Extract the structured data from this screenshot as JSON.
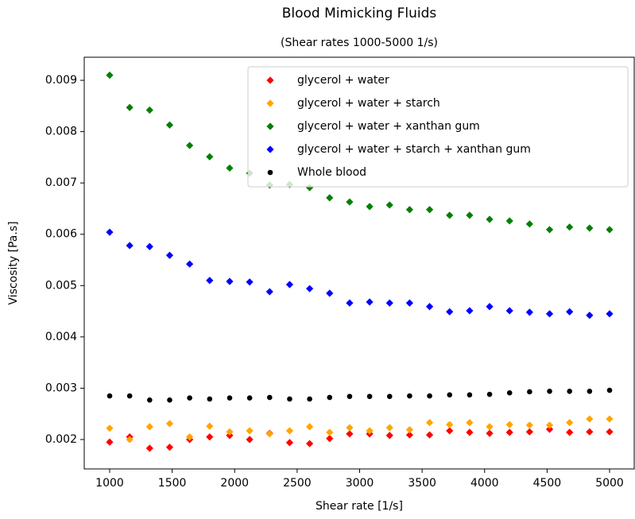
{
  "chart_data": {
    "type": "scatter",
    "title": "Blood Mimicking Fluids",
    "subtitle": "(Shear rates 1000-5000 1/s)",
    "x_label": "Shear rate [1/s]",
    "y_label": "Viscosity [Pa.s]",
    "x": [
      1000,
      1160,
      1320,
      1480,
      1640,
      1800,
      1960,
      2120,
      2280,
      2440,
      2600,
      2760,
      2920,
      3080,
      3240,
      3400,
      3560,
      3720,
      3880,
      4040,
      4200,
      4360,
      4520,
      4680,
      4840,
      5000
    ],
    "series": [
      {
        "name": "glycerol + water",
        "color": "#ff0000",
        "marker": "diamond",
        "values": [
          0.00195,
          0.00205,
          0.00183,
          0.00185,
          0.002,
          0.00205,
          0.00208,
          0.002,
          0.00212,
          0.00194,
          0.00192,
          0.00202,
          0.00211,
          0.00211,
          0.00208,
          0.00209,
          0.00209,
          0.00217,
          0.00214,
          0.00212,
          0.00214,
          0.00215,
          0.0022,
          0.00214,
          0.00215,
          0.00215
        ]
      },
      {
        "name": "glycerol + water + starch",
        "color": "#ffa500",
        "marker": "diamond",
        "values": [
          0.00222,
          0.002,
          0.00225,
          0.00231,
          0.00205,
          0.00226,
          0.00215,
          0.00217,
          0.00211,
          0.00217,
          0.00225,
          0.00214,
          0.00223,
          0.00217,
          0.00223,
          0.00219,
          0.00233,
          0.00229,
          0.00233,
          0.00225,
          0.00229,
          0.00228,
          0.00228,
          0.00233,
          0.0024,
          0.0024
        ]
      },
      {
        "name": "glycerol + water + xanthan gum",
        "color": "#008000",
        "marker": "diamond",
        "values": [
          0.0091,
          0.00847,
          0.00842,
          0.00813,
          0.00773,
          0.00751,
          0.00729,
          0.00719,
          0.00696,
          0.00697,
          0.00691,
          0.00671,
          0.00663,
          0.00654,
          0.00657,
          0.00648,
          0.00648,
          0.00637,
          0.00637,
          0.00629,
          0.00626,
          0.0062,
          0.00609,
          0.00614,
          0.00612,
          0.00609
        ]
      },
      {
        "name": "glycerol + water + starch + xanthan gum",
        "color": "#0000ff",
        "marker": "diamond",
        "values": [
          0.00604,
          0.00578,
          0.00576,
          0.00559,
          0.00542,
          0.0051,
          0.00508,
          0.00507,
          0.00488,
          0.00502,
          0.00494,
          0.00485,
          0.00466,
          0.00468,
          0.00466,
          0.00466,
          0.00459,
          0.00449,
          0.00451,
          0.00459,
          0.00451,
          0.00448,
          0.00445,
          0.00449,
          0.00442,
          0.00445
        ]
      },
      {
        "name": "Whole blood",
        "color": "#000000",
        "marker": "circle",
        "values": [
          0.00285,
          0.00285,
          0.00277,
          0.00277,
          0.00281,
          0.00279,
          0.00281,
          0.00281,
          0.00282,
          0.00279,
          0.00279,
          0.00282,
          0.00284,
          0.00284,
          0.00284,
          0.00285,
          0.00285,
          0.00287,
          0.00287,
          0.00288,
          0.00291,
          0.00293,
          0.00294,
          0.00294,
          0.00294,
          0.00296
        ]
      }
    ],
    "xlim": [
      796.5,
      5197
    ],
    "ylim": [
      0.001427,
      0.00945
    ],
    "xticks": [
      1000,
      1500,
      2000,
      2500,
      3000,
      3500,
      4000,
      4500,
      5000
    ],
    "yticks": [
      0.002,
      0.003,
      0.004,
      0.005,
      0.006,
      0.007,
      0.008,
      0.009
    ],
    "legend": "upper right"
  }
}
